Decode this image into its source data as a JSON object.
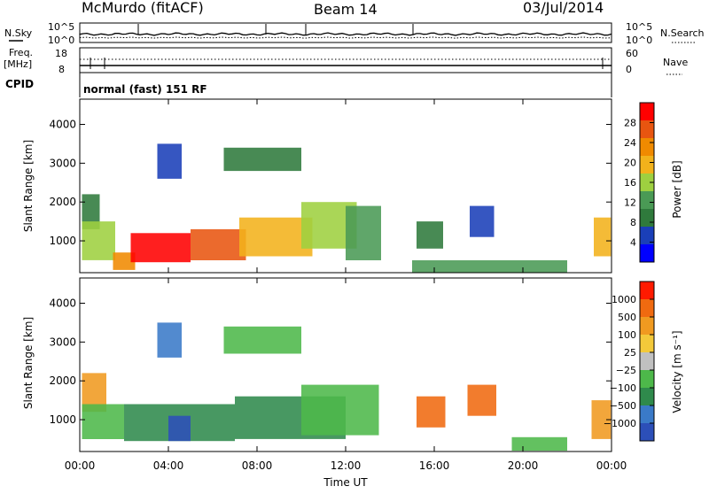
{
  "header": {
    "station": "McMurdo (fitACF)",
    "beam": "Beam 14",
    "date": "03/Jul/2014"
  },
  "status_panel": {
    "nsky_label": "N.Sky",
    "nsky_ticks": [
      "10^5",
      "10^0"
    ],
    "nsearch_label": "N.Search",
    "nsearch_ticks": [
      "10^5",
      "10^0"
    ],
    "freq_label": "Freq.",
    "freq_unit": "[MHz]",
    "freq_ticks": [
      "18",
      "8"
    ],
    "nave_label": "Nave",
    "nave_ticks": [
      "60",
      "0"
    ],
    "cpid_label": "CPID",
    "cpid_text": "normal (fast) 151 RF"
  },
  "chart_data": [
    {
      "type": "heatmap",
      "name": "Power",
      "ylabel": "Slant Range [km]",
      "ylim": [
        180,
        4650
      ],
      "yticks": [
        "4000",
        "3000",
        "2000",
        "1000"
      ],
      "ytick_values": [
        4000,
        3000,
        2000,
        1000
      ],
      "colorbar_label": "Power [dB]",
      "colorbar_ticks": [
        "28",
        "24",
        "20",
        "16",
        "12",
        "8",
        "4"
      ],
      "colorbar_colors": [
        "#0000ff",
        "#1a3fb8",
        "#2f7a3c",
        "#4a9a55",
        "#9ed040",
        "#f2b21b",
        "#f08a00",
        "#e85510",
        "#ff0000"
      ],
      "regions": [
        {
          "t0": 0.1,
          "t1": 0.9,
          "r0": 1300,
          "r1": 2200,
          "level": 2
        },
        {
          "t0": 0.1,
          "t1": 1.6,
          "r0": 500,
          "r1": 1500,
          "level": 4
        },
        {
          "t0": 1.5,
          "t1": 2.5,
          "r0": 250,
          "r1": 700,
          "level": 6
        },
        {
          "t0": 2.3,
          "t1": 5.0,
          "r0": 450,
          "r1": 1200,
          "level": 8
        },
        {
          "t0": 5.0,
          "t1": 7.5,
          "r0": 500,
          "r1": 1300,
          "level": 7
        },
        {
          "t0": 7.2,
          "t1": 10.5,
          "r0": 600,
          "r1": 1600,
          "level": 5
        },
        {
          "t0": 10.0,
          "t1": 12.5,
          "r0": 800,
          "r1": 2000,
          "level": 4
        },
        {
          "t0": 12.0,
          "t1": 13.6,
          "r0": 500,
          "r1": 1900,
          "level": 3
        },
        {
          "t0": 6.5,
          "t1": 10.0,
          "r0": 2800,
          "r1": 3400,
          "level": 2
        },
        {
          "t0": 3.5,
          "t1": 4.6,
          "r0": 2600,
          "r1": 3500,
          "level": 1
        },
        {
          "t0": 15.2,
          "t1": 16.4,
          "r0": 800,
          "r1": 1500,
          "level": 2
        },
        {
          "t0": 17.6,
          "t1": 18.7,
          "r0": 1100,
          "r1": 1900,
          "level": 1
        },
        {
          "t0": 23.2,
          "t1": 23.97,
          "r0": 600,
          "r1": 1600,
          "level": 5
        },
        {
          "t0": 15.0,
          "t1": 22.0,
          "r0": 180,
          "r1": 500,
          "level": 3
        }
      ]
    },
    {
      "type": "heatmap",
      "name": "Velocity",
      "ylabel": "Slant Range [km]",
      "xlabel": "Time UT",
      "ylim": [
        180,
        4650
      ],
      "yticks": [
        "4000",
        "3000",
        "2000",
        "1000"
      ],
      "ytick_values": [
        4000,
        3000,
        2000,
        1000
      ],
      "xticks": [
        "00:00",
        "04:00",
        "08:00",
        "12:00",
        "16:00",
        "20:00",
        "00:00"
      ],
      "xtick_values": [
        0,
        4,
        8,
        12,
        16,
        20,
        24
      ],
      "xlim": [
        0,
        24
      ],
      "colorbar_label": "Velocity [m s⁻¹]",
      "colorbar_ticks": [
        "1000",
        "500",
        "100",
        "25",
        "−25",
        "−100",
        "−500",
        "−1000"
      ],
      "colorbar_colors": [
        "#2c4fb8",
        "#3a7ac8",
        "#2f8a4c",
        "#4db84a",
        "#c0c0c0",
        "#f3c93a",
        "#f09a20",
        "#f06a10",
        "#ff1a00"
      ],
      "regions": [
        {
          "t0": 0.1,
          "t1": 1.2,
          "r0": 1200,
          "r1": 2200,
          "level": 6
        },
        {
          "t0": 0.1,
          "t1": 2.0,
          "r0": 500,
          "r1": 1400,
          "level": 3
        },
        {
          "t0": 2.0,
          "t1": 7.0,
          "r0": 450,
          "r1": 1400,
          "level": 2
        },
        {
          "t0": 4.0,
          "t1": 5.0,
          "r0": 450,
          "r1": 1100,
          "level": 0
        },
        {
          "t0": 7.0,
          "t1": 12.0,
          "r0": 500,
          "r1": 1600,
          "level": 2
        },
        {
          "t0": 10.0,
          "t1": 13.5,
          "r0": 600,
          "r1": 1900,
          "level": 3
        },
        {
          "t0": 6.5,
          "t1": 10.0,
          "r0": 2700,
          "r1": 3400,
          "level": 3
        },
        {
          "t0": 3.5,
          "t1": 4.6,
          "r0": 2600,
          "r1": 3500,
          "level": 1
        },
        {
          "t0": 15.2,
          "t1": 16.5,
          "r0": 800,
          "r1": 1600,
          "level": 7
        },
        {
          "t0": 17.5,
          "t1": 18.8,
          "r0": 1100,
          "r1": 1900,
          "level": 7
        },
        {
          "t0": 23.1,
          "t1": 23.97,
          "r0": 500,
          "r1": 1500,
          "level": 6
        },
        {
          "t0": 19.5,
          "t1": 22.0,
          "r0": 200,
          "r1": 550,
          "level": 3
        }
      ]
    }
  ]
}
